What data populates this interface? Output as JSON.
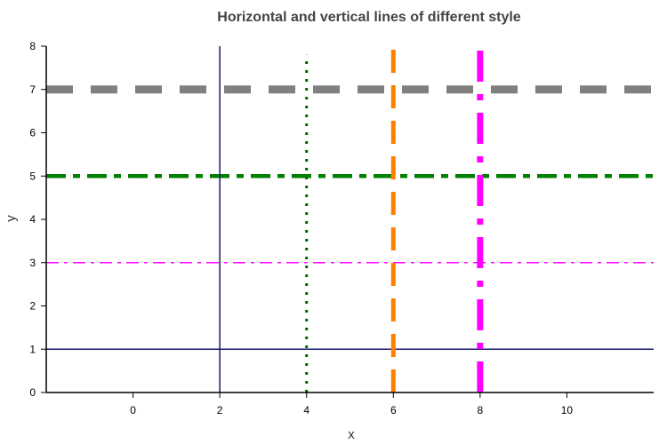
{
  "chart_data": {
    "type": "line",
    "title": "Horizontal and vertical lines of different style",
    "xlabel": "x",
    "ylabel": "y",
    "xlim": [
      -2,
      12
    ],
    "ylim": [
      0,
      8
    ],
    "xticks": [
      0,
      2,
      4,
      6,
      8,
      10
    ],
    "yticks": [
      0,
      1,
      2,
      3,
      4,
      5,
      6,
      7,
      8
    ],
    "grid": false,
    "legend": "none",
    "vertical_lines": [
      {
        "x": 2,
        "color": "#191970",
        "style": "solid"
      },
      {
        "x": 4,
        "color": "#006400",
        "style": "dotted"
      },
      {
        "x": 6,
        "color": "#ff8000",
        "style": "long-dash"
      },
      {
        "x": 8,
        "color": "#ff00ff",
        "style": "dash-dot"
      }
    ],
    "horizontal_lines": [
      {
        "y": 1,
        "color": "#191970",
        "style": "solid"
      },
      {
        "y": 3,
        "color": "#ff00ff",
        "style": "dash-dot"
      },
      {
        "y": 5,
        "color": "#008000",
        "style": "dash-dot"
      },
      {
        "y": 7,
        "color": "#808080",
        "style": "dashed"
      }
    ]
  }
}
